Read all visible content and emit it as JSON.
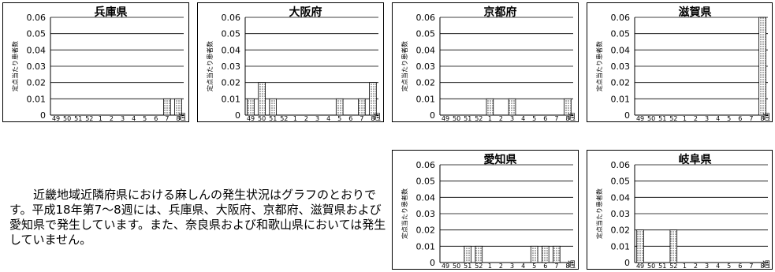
{
  "description": "近畿地域近隣府県における麻しんの発生状況はグラフのとおりです。平成18年第7～8週には、兵庫県、大阪府、京都府、滋賀県および愛知県で発生しています。また、奈良県および和歌山県においては発生していません。",
  "chart_data": [
    {
      "type": "bar",
      "title": "兵庫県",
      "ylabel": "定点当たり患者数",
      "xlabel": "週",
      "categories": [
        "49",
        "50",
        "51",
        "52",
        "1",
        "2",
        "3",
        "4",
        "5",
        "6",
        "7",
        "8"
      ],
      "values": [
        0,
        0,
        0,
        0,
        0,
        0,
        0,
        0,
        0,
        0,
        0.01,
        0.01
      ],
      "ylim": [
        0,
        0.06
      ],
      "yticks": [
        "0",
        "0.01",
        "0.02",
        "0.03",
        "0.04",
        "0.05",
        "0.06"
      ],
      "grid": true
    },
    {
      "type": "bar",
      "title": "大阪府",
      "ylabel": "定点当たり患者数",
      "xlabel": "週",
      "categories": [
        "49",
        "50",
        "51",
        "52",
        "1",
        "2",
        "3",
        "4",
        "5",
        "6",
        "7",
        "8"
      ],
      "values": [
        0.01,
        0.02,
        0.01,
        0,
        0,
        0,
        0,
        0,
        0.01,
        0,
        0.01,
        0.02
      ],
      "ylim": [
        0,
        0.06
      ],
      "yticks": [
        "0",
        "0.01",
        "0.02",
        "0.03",
        "0.04",
        "0.05",
        "0.06"
      ],
      "grid": true
    },
    {
      "type": "bar",
      "title": "京都府",
      "ylabel": "定点当たり患者数",
      "xlabel": "週",
      "categories": [
        "49",
        "50",
        "51",
        "52",
        "1",
        "2",
        "3",
        "4",
        "5",
        "6",
        "7",
        "8"
      ],
      "values": [
        0,
        0,
        0,
        0,
        0.01,
        0,
        0.01,
        0,
        0,
        0,
        0,
        0.01
      ],
      "ylim": [
        0,
        0.06
      ],
      "yticks": [
        "0",
        "0.01",
        "0.02",
        "0.03",
        "0.04",
        "0.05",
        "0.06"
      ],
      "grid": true
    },
    {
      "type": "bar",
      "title": "滋賀県",
      "ylabel": "定点当たり患者数",
      "xlabel": "週",
      "categories": [
        "49",
        "50",
        "51",
        "52",
        "1",
        "2",
        "3",
        "4",
        "5",
        "6",
        "7",
        "8"
      ],
      "values": [
        0,
        0,
        0,
        0,
        0,
        0,
        0,
        0,
        0,
        0,
        0,
        0.06
      ],
      "ylim": [
        0,
        0.06
      ],
      "yticks": [
        "0",
        "0.01",
        "0.02",
        "0.03",
        "0.04",
        "0.05",
        "0.06"
      ],
      "grid": true
    },
    {
      "type": "bar",
      "title": "愛知県",
      "ylabel": "定点当たり患者数",
      "xlabel": "週",
      "categories": [
        "49",
        "50",
        "51",
        "52",
        "1",
        "2",
        "3",
        "4",
        "5",
        "6",
        "7",
        "8"
      ],
      "values": [
        0,
        0,
        0.01,
        0.01,
        0,
        0,
        0,
        0,
        0.01,
        0.01,
        0.01,
        0
      ],
      "ylim": [
        0,
        0.06
      ],
      "yticks": [
        "0",
        "0.01",
        "0.02",
        "0.03",
        "0.04",
        "0.05",
        "0.06"
      ],
      "grid": true
    },
    {
      "type": "bar",
      "title": "岐阜県",
      "ylabel": "定点当たり患者数",
      "xlabel": "週",
      "categories": [
        "49",
        "50",
        "51",
        "52",
        "1",
        "2",
        "3",
        "4",
        "5",
        "6",
        "7",
        "8"
      ],
      "values": [
        0.02,
        0,
        0,
        0.02,
        0,
        0,
        0,
        0,
        0,
        0,
        0,
        0
      ],
      "ylim": [
        0,
        0.06
      ],
      "yticks": [
        "0",
        "0.01",
        "0.02",
        "0.03",
        "0.04",
        "0.05",
        "0.06"
      ],
      "grid": true
    }
  ]
}
